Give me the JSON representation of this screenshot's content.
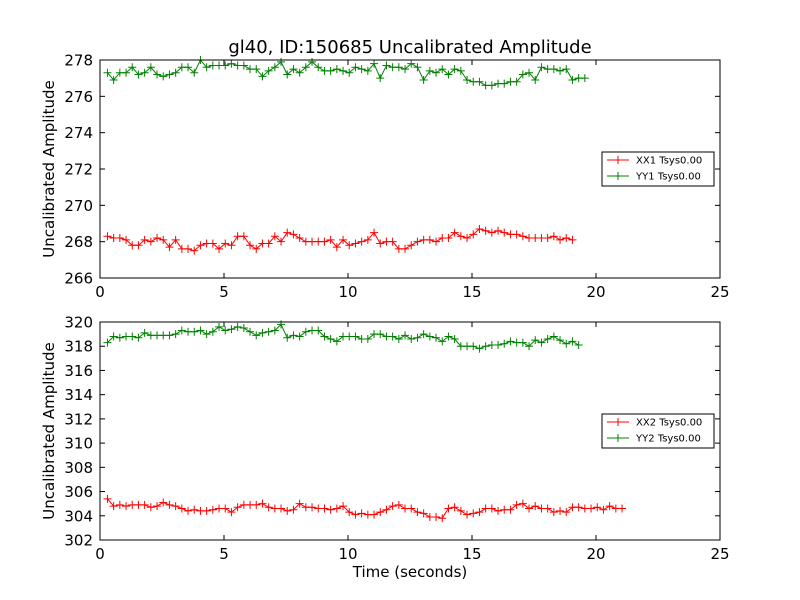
{
  "figure_title": "gl40, ID:150685 Uncalibrated Amplitude",
  "colors": {
    "series_1": "#ff0000",
    "series_2": "#008000"
  },
  "chart_data": [
    {
      "type": "line",
      "title": "gl40, ID:150685 Uncalibrated Amplitude",
      "xlabel": "",
      "ylabel": "Uncalibrated Amplitude",
      "xlim": [
        0,
        25
      ],
      "ylim": [
        266,
        278
      ],
      "xticks": [
        0,
        5,
        10,
        15,
        20,
        25
      ],
      "xtick_labels": [
        "0",
        "5",
        "10",
        "15",
        "20",
        "25"
      ],
      "yticks": [
        266,
        268,
        270,
        272,
        274,
        276,
        278
      ],
      "ytick_labels": [
        "266",
        "268",
        "270",
        "272",
        "274",
        "276",
        "278"
      ],
      "grid": false,
      "legend_position": "center-right",
      "series": [
        {
          "name": "XX1 Tsys0.00",
          "color": "#ff0000",
          "start": 0.3,
          "step": 0.25,
          "values": [
            268.3,
            268.2,
            268.2,
            268.1,
            267.8,
            267.8,
            268.1,
            268.0,
            268.2,
            268.1,
            267.7,
            268.1,
            267.6,
            267.6,
            267.5,
            267.8,
            267.9,
            267.9,
            267.6,
            267.9,
            267.8,
            268.3,
            268.3,
            267.8,
            267.6,
            267.9,
            267.9,
            268.3,
            268.0,
            268.5,
            268.4,
            268.2,
            268.0,
            268.0,
            268.0,
            268.0,
            268.1,
            267.7,
            268.1,
            267.8,
            267.9,
            268.0,
            268.1,
            268.5,
            267.9,
            268.0,
            268.0,
            267.6,
            267.6,
            267.8,
            268.0,
            268.1,
            268.1,
            268.0,
            268.2,
            268.2,
            268.5,
            268.3,
            268.2,
            268.4,
            268.7,
            268.6,
            268.5,
            268.6,
            268.5,
            268.4,
            268.4,
            268.3,
            268.2,
            268.2,
            268.2,
            268.2,
            268.3,
            268.1,
            268.2,
            268.1
          ]
        },
        {
          "name": "YY1 Tsys0.00",
          "color": "#008000",
          "start": 0.3,
          "step": 0.25,
          "values": [
            277.3,
            276.9,
            277.3,
            277.3,
            277.6,
            277.2,
            277.3,
            277.6,
            277.2,
            277.1,
            277.2,
            277.3,
            277.6,
            277.6,
            277.3,
            278.0,
            277.6,
            277.7,
            277.7,
            277.7,
            277.8,
            277.7,
            277.7,
            277.5,
            277.5,
            277.1,
            277.4,
            277.6,
            277.9,
            277.2,
            277.5,
            277.3,
            277.6,
            277.9,
            277.6,
            277.4,
            277.4,
            277.5,
            277.4,
            277.3,
            277.6,
            277.5,
            277.4,
            277.8,
            277.0,
            277.7,
            277.6,
            277.6,
            277.5,
            277.8,
            277.6,
            276.9,
            277.4,
            277.3,
            277.5,
            277.2,
            277.5,
            277.4,
            276.9,
            276.8,
            276.8,
            276.6,
            276.6,
            276.7,
            276.7,
            276.8,
            276.8,
            277.2,
            277.3,
            276.9,
            277.6,
            277.5,
            277.5,
            277.4,
            277.5,
            276.9,
            277.0,
            277.0
          ]
        }
      ]
    },
    {
      "type": "line",
      "title": "",
      "xlabel": "Time (seconds)",
      "ylabel": "Uncalibrated Amplitude",
      "xlim": [
        0,
        25
      ],
      "ylim": [
        302,
        320
      ],
      "xticks": [
        0,
        5,
        10,
        15,
        20,
        25
      ],
      "xtick_labels": [
        "0",
        "5",
        "10",
        "15",
        "20",
        "25"
      ],
      "yticks": [
        302,
        304,
        306,
        308,
        310,
        312,
        314,
        316,
        318,
        320
      ],
      "ytick_labels": [
        "302",
        "304",
        "306",
        "308",
        "310",
        "312",
        "314",
        "316",
        "318",
        "320"
      ],
      "grid": false,
      "legend_position": "center-right",
      "series": [
        {
          "name": "XX2 Tsys0.00",
          "color": "#ff0000",
          "start": 0.3,
          "step": 0.25,
          "values": [
            305.4,
            304.8,
            304.9,
            304.8,
            304.9,
            304.9,
            304.9,
            304.7,
            304.8,
            305.1,
            304.9,
            304.8,
            304.6,
            304.4,
            304.5,
            304.4,
            304.4,
            304.5,
            304.6,
            304.6,
            304.3,
            304.7,
            304.9,
            304.9,
            304.9,
            305.0,
            304.7,
            304.6,
            304.6,
            304.4,
            304.5,
            305.0,
            304.7,
            304.7,
            304.6,
            304.6,
            304.5,
            304.6,
            304.8,
            304.3,
            304.1,
            304.2,
            304.1,
            304.1,
            304.3,
            304.5,
            304.8,
            304.9,
            304.6,
            304.6,
            304.3,
            304.2,
            303.9,
            303.9,
            303.8,
            304.6,
            304.7,
            304.4,
            304.1,
            304.2,
            304.3,
            304.6,
            304.6,
            304.4,
            304.5,
            304.5,
            304.9,
            305.0,
            304.6,
            304.8,
            304.6,
            304.6,
            304.3,
            304.4,
            304.3,
            304.7,
            304.7,
            304.6,
            304.6,
            304.7,
            304.5,
            304.8,
            304.6,
            304.6
          ]
        },
        {
          "name": "YY2 Tsys0.00",
          "color": "#008000",
          "start": 0.3,
          "step": 0.25,
          "values": [
            318.3,
            318.8,
            318.7,
            318.8,
            318.8,
            318.7,
            319.1,
            318.9,
            318.9,
            318.9,
            318.9,
            319.0,
            319.3,
            319.2,
            319.2,
            319.3,
            319.0,
            319.2,
            319.6,
            319.3,
            319.4,
            319.6,
            319.5,
            319.2,
            318.9,
            319.1,
            319.2,
            319.3,
            319.8,
            318.7,
            318.9,
            318.8,
            319.2,
            319.3,
            319.3,
            318.8,
            318.6,
            318.4,
            318.8,
            318.8,
            318.8,
            318.6,
            318.6,
            319.0,
            319.0,
            318.8,
            318.8,
            318.6,
            318.9,
            318.6,
            318.7,
            319.0,
            318.8,
            318.7,
            318.4,
            318.8,
            318.6,
            318.0,
            318.0,
            318.0,
            317.8,
            318.0,
            318.1,
            318.1,
            318.2,
            318.4,
            318.3,
            318.3,
            318.0,
            318.5,
            318.3,
            318.6,
            318.8,
            318.5,
            318.2,
            318.4,
            318.1
          ]
        }
      ]
    }
  ]
}
